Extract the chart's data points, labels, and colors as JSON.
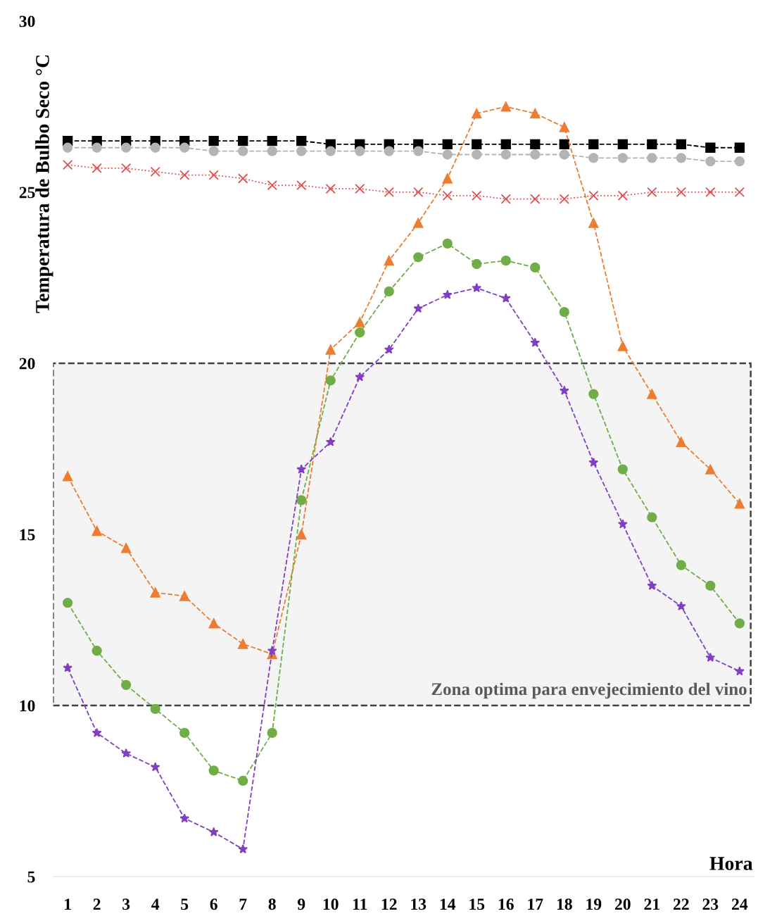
{
  "chart_data": {
    "type": "line",
    "ylabel": "Temperatura de Bulbo Seco °C",
    "xlabel": "Hora",
    "x": [
      1,
      2,
      3,
      4,
      5,
      6,
      7,
      8,
      9,
      10,
      11,
      12,
      13,
      14,
      15,
      16,
      17,
      18,
      19,
      20,
      21,
      22,
      23,
      24
    ],
    "xlim": [
      0.5,
      24.5
    ],
    "xticks": [
      1,
      2,
      3,
      4,
      5,
      6,
      7,
      8,
      9,
      10,
      11,
      12,
      13,
      14,
      15,
      16,
      17,
      18,
      19,
      20,
      21,
      22,
      23,
      24
    ],
    "ylim": [
      5,
      30
    ],
    "yticks": [
      5,
      10,
      15,
      20,
      25,
      30
    ],
    "grid": false,
    "legend": false,
    "line_style": "dashed",
    "series": [
      {
        "color": "#000000",
        "marker": "square",
        "values": [
          26.5,
          26.5,
          26.5,
          26.5,
          26.5,
          26.5,
          26.5,
          26.5,
          26.5,
          26.4,
          26.4,
          26.4,
          26.4,
          26.4,
          26.4,
          26.4,
          26.4,
          26.4,
          26.4,
          26.4,
          26.4,
          26.4,
          26.3,
          26.3
        ]
      },
      {
        "color": "#b4b4b4",
        "marker": "circle",
        "values": [
          26.3,
          26.3,
          26.3,
          26.3,
          26.3,
          26.2,
          26.2,
          26.2,
          26.2,
          26.2,
          26.2,
          26.2,
          26.2,
          26.1,
          26.1,
          26.1,
          26.1,
          26.1,
          26.0,
          26.0,
          26.0,
          26.0,
          25.9,
          25.9
        ]
      },
      {
        "color": "#e05050",
        "marker": "cross",
        "line_style": "dotted",
        "values": [
          25.8,
          25.7,
          25.7,
          25.6,
          25.5,
          25.5,
          25.4,
          25.2,
          25.2,
          25.1,
          25.1,
          25.0,
          25.0,
          24.9,
          24.9,
          24.8,
          24.8,
          24.8,
          24.9,
          24.9,
          25.0,
          25.0,
          25.0,
          25.0
        ]
      },
      {
        "color": "#ed7d31",
        "marker": "triangle",
        "values": [
          16.7,
          15.1,
          14.6,
          13.3,
          13.2,
          12.4,
          11.8,
          11.5,
          15.0,
          20.4,
          21.2,
          23.0,
          24.1,
          25.4,
          27.3,
          27.5,
          27.3,
          26.9,
          24.1,
          20.5,
          19.1,
          17.7,
          16.9,
          15.9
        ]
      },
      {
        "color": "#70ad47",
        "marker": "circle",
        "values": [
          13.0,
          11.6,
          10.6,
          9.9,
          9.2,
          8.1,
          7.8,
          9.2,
          16.0,
          19.5,
          20.9,
          22.1,
          23.1,
          23.5,
          22.9,
          23.0,
          22.8,
          21.5,
          19.1,
          16.9,
          15.5,
          14.1,
          13.5,
          12.4
        ]
      },
      {
        "color": "#8040c0",
        "marker": "star",
        "values": [
          11.1,
          9.2,
          8.6,
          8.2,
          6.7,
          6.3,
          5.8,
          11.6,
          16.9,
          17.7,
          19.6,
          20.4,
          21.6,
          22.0,
          22.2,
          21.9,
          20.6,
          19.2,
          17.1,
          15.3,
          13.5,
          12.9,
          11.4,
          11.0
        ]
      }
    ],
    "bands": [
      {
        "axis": "y",
        "from": 10,
        "to": 20,
        "label": "Zona optima para envejecimiento del vino",
        "color": "#404040"
      }
    ]
  }
}
